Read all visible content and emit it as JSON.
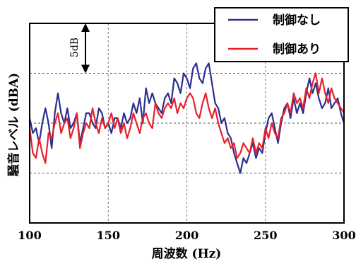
{
  "chart_data": {
    "type": "line",
    "title": "",
    "xlabel": "周波数 (Hz)",
    "ylabel": "騒音レベル (dBA)",
    "xlim": [
      100,
      300
    ],
    "x_ticks": [
      "100",
      "150",
      "200",
      "250",
      "300"
    ],
    "y_tick_labels_shown": false,
    "ylim": [
      0,
      20
    ],
    "grid": true,
    "legend_position": "top-right",
    "scale_marker": {
      "label": "5dB",
      "span_db": 5
    },
    "series": [
      {
        "name": "制御なし",
        "color": "#2b2f8f",
        "x": [
          100,
          102,
          104,
          106,
          108,
          110,
          112,
          114,
          116,
          118,
          120,
          122,
          124,
          126,
          128,
          130,
          132,
          134,
          136,
          138,
          140,
          142,
          144,
          146,
          148,
          150,
          152,
          154,
          156,
          158,
          160,
          162,
          164,
          166,
          168,
          170,
          172,
          174,
          176,
          178,
          180,
          182,
          184,
          186,
          188,
          190,
          192,
          194,
          196,
          198,
          200,
          202,
          204,
          206,
          208,
          210,
          212,
          214,
          216,
          218,
          220,
          222,
          224,
          226,
          228,
          230,
          232,
          234,
          236,
          238,
          240,
          242,
          244,
          246,
          248,
          250,
          252,
          254,
          256,
          258,
          260,
          262,
          264,
          266,
          268,
          270,
          272,
          274,
          276,
          278,
          280,
          282,
          284,
          286,
          288,
          290,
          292,
          294,
          296,
          298,
          300
        ],
        "y": [
          10.5,
          9.0,
          9.5,
          8.0,
          10.0,
          11.5,
          10.0,
          7.5,
          11.0,
          13.0,
          11.0,
          10.0,
          11.5,
          9.5,
          10.0,
          11.0,
          8.0,
          9.5,
          11.0,
          11.0,
          10.0,
          9.5,
          11.5,
          11.0,
          9.5,
          10.0,
          9.0,
          10.5,
          10.5,
          9.5,
          11.0,
          10.0,
          10.5,
          12.0,
          11.0,
          12.5,
          10.0,
          13.5,
          12.0,
          13.0,
          12.0,
          11.5,
          11.0,
          12.5,
          13.0,
          12.0,
          14.5,
          14.0,
          13.0,
          15.0,
          14.5,
          13.5,
          15.5,
          16.0,
          14.5,
          14.0,
          15.5,
          16.0,
          14.0,
          12.0,
          11.5,
          10.0,
          10.5,
          9.0,
          8.5,
          7.0,
          6.0,
          5.0,
          6.5,
          6.0,
          7.0,
          8.0,
          6.5,
          7.5,
          7.0,
          9.0,
          10.5,
          11.0,
          9.5,
          8.0,
          10.0,
          11.5,
          12.0,
          10.5,
          12.5,
          11.0,
          12.0,
          11.0,
          13.0,
          14.5,
          13.0,
          14.0,
          12.5,
          11.5,
          12.0,
          13.5,
          11.5,
          12.0,
          12.5,
          11.0,
          10.0
        ]
      },
      {
        "name": "制御あり",
        "color": "#e8202a",
        "x": [
          100,
          102,
          104,
          106,
          108,
          110,
          112,
          114,
          116,
          118,
          120,
          122,
          124,
          126,
          128,
          130,
          132,
          134,
          136,
          138,
          140,
          142,
          144,
          146,
          148,
          150,
          152,
          154,
          156,
          158,
          160,
          162,
          164,
          166,
          168,
          170,
          172,
          174,
          176,
          178,
          180,
          182,
          184,
          186,
          188,
          190,
          192,
          194,
          196,
          198,
          200,
          202,
          204,
          206,
          208,
          210,
          212,
          214,
          216,
          218,
          220,
          222,
          224,
          226,
          228,
          230,
          232,
          234,
          236,
          238,
          240,
          242,
          244,
          246,
          248,
          250,
          252,
          254,
          256,
          258,
          260,
          262,
          264,
          266,
          268,
          270,
          272,
          274,
          276,
          278,
          280,
          282,
          284,
          286,
          288,
          290,
          292,
          294,
          296,
          298,
          300
        ],
        "y": [
          9.5,
          7.0,
          6.5,
          8.5,
          7.0,
          6.0,
          9.0,
          8.5,
          10.0,
          11.0,
          9.0,
          10.0,
          10.5,
          8.5,
          9.5,
          11.0,
          7.5,
          9.0,
          10.0,
          9.5,
          11.5,
          10.0,
          9.0,
          10.5,
          9.5,
          10.0,
          11.0,
          9.5,
          10.5,
          9.0,
          10.0,
          8.5,
          9.5,
          11.0,
          10.0,
          9.0,
          10.5,
          11.0,
          10.0,
          9.5,
          12.0,
          11.0,
          10.5,
          11.5,
          12.0,
          11.5,
          12.5,
          11.0,
          12.0,
          11.5,
          12.5,
          13.0,
          12.5,
          11.0,
          10.5,
          12.0,
          13.0,
          11.5,
          10.5,
          11.5,
          10.0,
          9.0,
          8.0,
          8.5,
          7.5,
          8.0,
          6.5,
          7.0,
          8.0,
          7.5,
          7.0,
          8.5,
          7.0,
          8.0,
          7.5,
          9.5,
          8.5,
          10.0,
          9.0,
          8.5,
          10.5,
          11.0,
          12.0,
          11.0,
          13.0,
          12.0,
          12.5,
          11.5,
          13.5,
          12.5,
          14.0,
          15.0,
          13.0,
          14.5,
          13.0,
          12.0,
          13.5,
          12.5,
          12.0,
          11.5,
          11.0
        ]
      }
    ]
  }
}
